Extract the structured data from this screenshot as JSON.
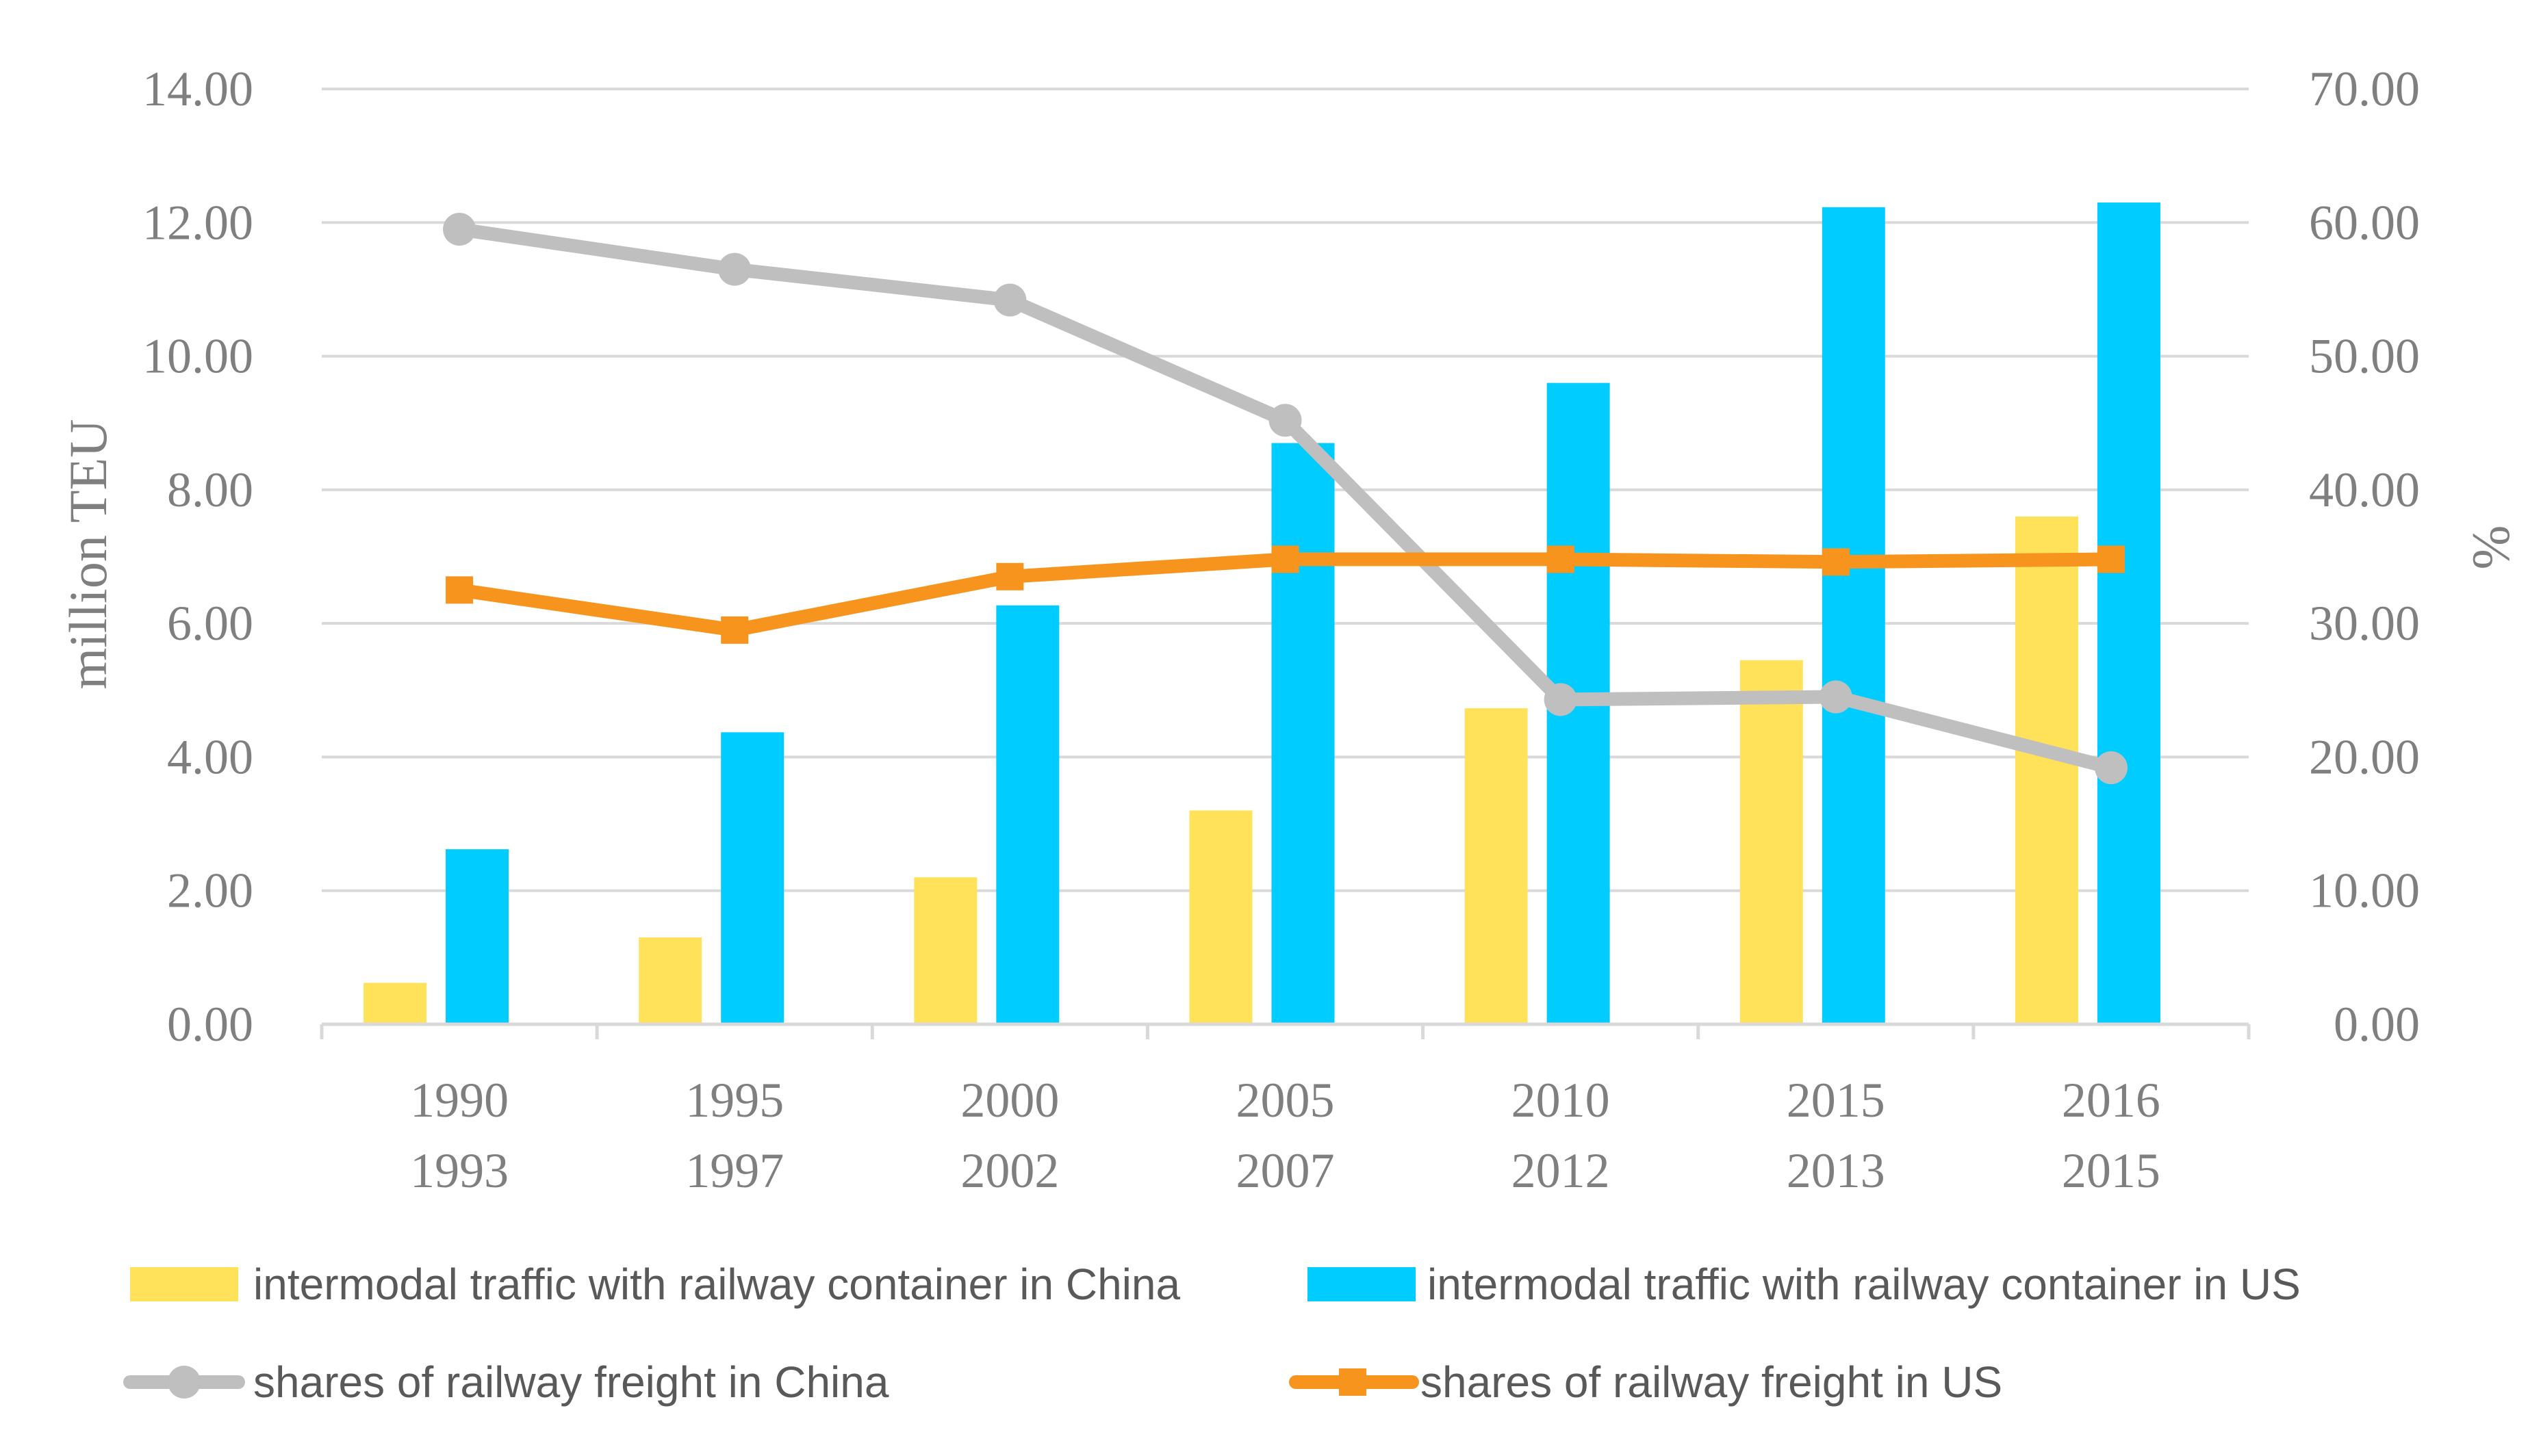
{
  "chart_data": {
    "type": "bar+line",
    "categories": [
      [
        "1990",
        "1993"
      ],
      [
        "1995",
        "1997"
      ],
      [
        "2000",
        "2002"
      ],
      [
        "2005",
        "2007"
      ],
      [
        "2010",
        "2012"
      ],
      [
        "2015",
        "2013"
      ],
      [
        "2016",
        "2015"
      ]
    ],
    "ylabel_left": "million TEU",
    "ylabel_right": "%",
    "ylim_left": [
      0,
      14
    ],
    "ylim_right": [
      0,
      70
    ],
    "yticks_left": [
      "0.00",
      "2.00",
      "4.00",
      "6.00",
      "8.00",
      "10.00",
      "12.00",
      "14.00"
    ],
    "yticks_right": [
      "0.00",
      "10.00",
      "20.00",
      "30.00",
      "40.00",
      "50.00",
      "60.00",
      "70.00"
    ],
    "grid": true,
    "legend_position": "bottom",
    "series": [
      {
        "name": "intermodal traffic with railway container in China",
        "kind": "bar",
        "axis": "left",
        "color": "#FFE15A",
        "values": [
          0.62,
          1.3,
          2.2,
          3.2,
          4.73,
          5.45,
          7.6
        ]
      },
      {
        "name": "intermodal traffic with railway container in US",
        "kind": "bar",
        "axis": "left",
        "color": "#00CCFF",
        "values": [
          2.62,
          4.37,
          6.27,
          8.7,
          9.6,
          12.23,
          12.3
        ]
      },
      {
        "name": "shares of railway freight in China",
        "kind": "line",
        "marker": "circle",
        "axis": "right",
        "color": "#BFBFBF",
        "values": [
          59.5,
          56.5,
          54.2,
          45.2,
          24.3,
          24.5,
          19.2
        ]
      },
      {
        "name": "shares of railway freight in US",
        "kind": "line",
        "marker": "square",
        "axis": "right",
        "color": "#F7941D",
        "values": [
          32.5,
          29.5,
          33.5,
          34.8,
          34.8,
          34.6,
          34.8
        ]
      }
    ]
  }
}
